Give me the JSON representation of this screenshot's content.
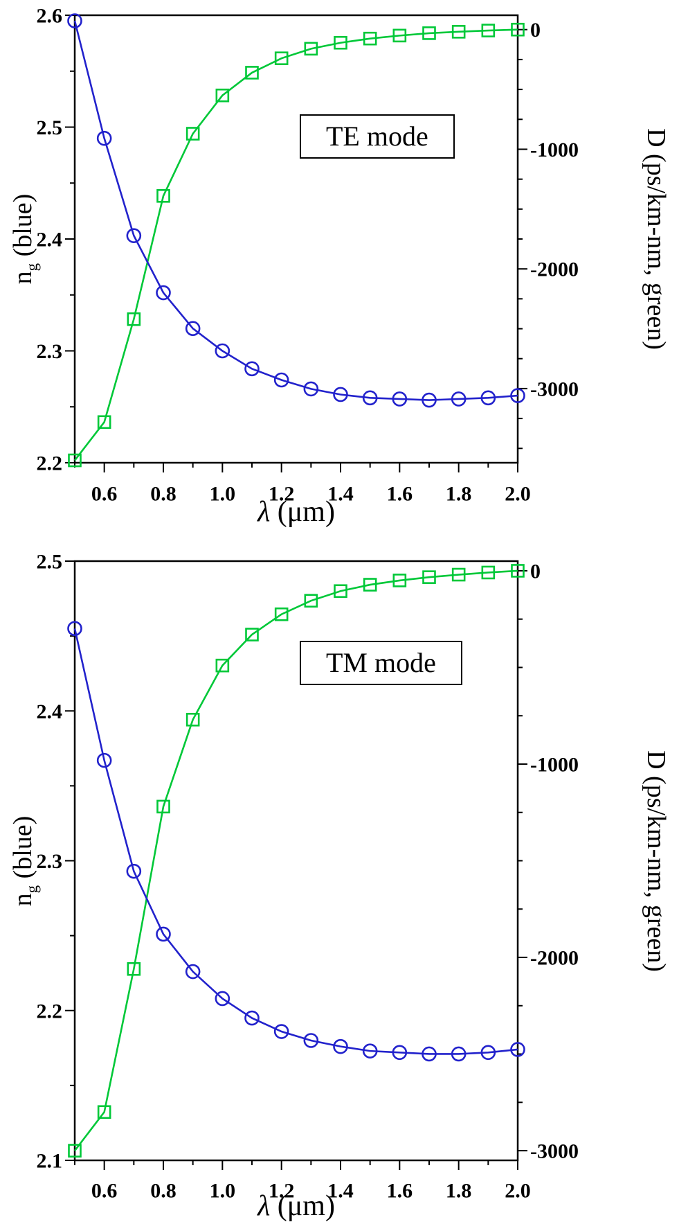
{
  "figure": {
    "background": "#ffffff"
  },
  "colors": {
    "blue": "#2222cc",
    "green": "#00c838",
    "frame": "#000000"
  },
  "chart_data": [
    {
      "type": "line",
      "mode_label": "TE mode",
      "xlabel_symbol": "λ",
      "xlabel_rest": " (μm)",
      "xlim": [
        0.5,
        2.0
      ],
      "x_major_ticks": [
        0.6,
        0.8,
        1.0,
        1.2,
        1.4,
        1.6,
        1.8,
        2.0
      ],
      "x_minor_step": 0.1,
      "x": [
        0.5,
        0.6,
        0.7,
        0.8,
        0.9,
        1.0,
        1.1,
        1.2,
        1.3,
        1.4,
        1.5,
        1.6,
        1.7,
        1.8,
        1.9,
        2.0
      ],
      "left_axis": {
        "label_main": "n",
        "label_sub": "g",
        "label_rest": " (blue)",
        "lim": [
          2.2,
          2.6
        ],
        "ticks": [
          2.2,
          2.3,
          2.4,
          2.5,
          2.6
        ],
        "minor_step": 0.05
      },
      "right_axis": {
        "label": "D (ps/km-nm, green)",
        "lim": [
          -3620,
          120
        ],
        "ticks": [
          0,
          -1000,
          -2000,
          -3000
        ],
        "minor_step": 250
      },
      "series": [
        {
          "name": "D",
          "axis": "right",
          "color": "#00c838",
          "marker": "square",
          "values": [
            -3600,
            -3280,
            -2420,
            -1390,
            -870,
            -550,
            -360,
            -240,
            -160,
            -110,
            -75,
            -50,
            -30,
            -18,
            -8,
            0
          ]
        },
        {
          "name": "ng",
          "axis": "left",
          "color": "#2222cc",
          "marker": "circle",
          "values": [
            2.595,
            2.49,
            2.403,
            2.352,
            2.32,
            2.3,
            2.284,
            2.274,
            2.266,
            2.261,
            2.258,
            2.257,
            2.256,
            2.257,
            2.258,
            2.26
          ]
        }
      ]
    },
    {
      "type": "line",
      "mode_label": "TM mode",
      "xlabel_symbol": "λ",
      "xlabel_rest": " (μm)",
      "xlim": [
        0.5,
        2.0
      ],
      "x_major_ticks": [
        0.6,
        0.8,
        1.0,
        1.2,
        1.4,
        1.6,
        1.8,
        2.0
      ],
      "x_minor_step": 0.1,
      "x": [
        0.5,
        0.6,
        0.7,
        0.8,
        0.9,
        1.0,
        1.1,
        1.2,
        1.3,
        1.4,
        1.5,
        1.6,
        1.7,
        1.8,
        1.9,
        2.0
      ],
      "left_axis": {
        "label_main": "n",
        "label_sub": "g",
        "label_rest": " (blue)",
        "lim": [
          2.1,
          2.5
        ],
        "ticks": [
          2.1,
          2.2,
          2.3,
          2.4,
          2.5
        ],
        "minor_step": 0.05
      },
      "right_axis": {
        "label": "D (ps/km-nm, green)",
        "lim": [
          -3050,
          50
        ],
        "ticks": [
          0,
          -1000,
          -2000,
          -3000
        ],
        "minor_step": 250
      },
      "series": [
        {
          "name": "D",
          "axis": "right",
          "color": "#00c838",
          "marker": "square",
          "values": [
            -3000,
            -2800,
            -2060,
            -1220,
            -770,
            -490,
            -330,
            -225,
            -155,
            -105,
            -72,
            -50,
            -33,
            -20,
            -9,
            0
          ]
        },
        {
          "name": "ng",
          "axis": "left",
          "color": "#2222cc",
          "marker": "circle",
          "values": [
            2.455,
            2.367,
            2.293,
            2.251,
            2.226,
            2.208,
            2.195,
            2.186,
            2.18,
            2.176,
            2.173,
            2.172,
            2.171,
            2.171,
            2.172,
            2.174
          ]
        }
      ]
    }
  ]
}
